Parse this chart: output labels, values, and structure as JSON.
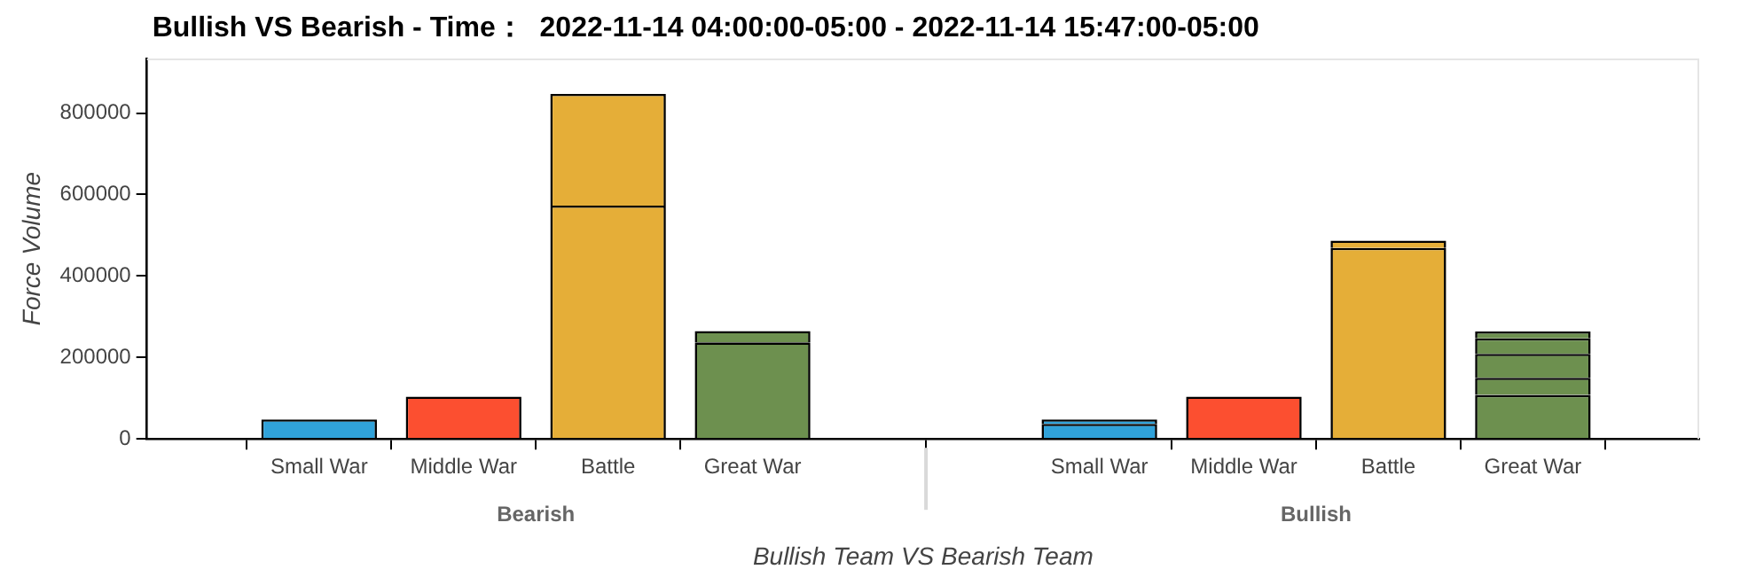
{
  "chart_data": {
    "type": "bar",
    "title": "Bullish VS Bearish - Time：  2022-11-14 04:00:00-05:00 - 2022-11-14 15:47:00-05:00",
    "xlabel": "Bullish Team VS Bearish Team",
    "ylabel": "Force Volume",
    "categories": [
      "Small War",
      "Middle War",
      "Battle",
      "Great War",
      "Small War",
      "Middle War",
      "Battle",
      "Great War"
    ],
    "annotations": [
      "Bearish",
      "Bullish"
    ],
    "stacked": true,
    "legend": false,
    "grid": false,
    "ylim": [
      0,
      934000
    ],
    "yticks": [
      0,
      200000,
      400000,
      600000,
      800000
    ],
    "series": [
      {
        "colors": [
          "#30a2da",
          "#fc4f30",
          "#e5ae38",
          "#6d904f",
          "#30a2da",
          "#fc4f30",
          "#e5ae38",
          "#6d904f"
        ],
        "values": [
          48000,
          104000,
          573000,
          237000,
          37000,
          104000,
          469000,
          108000
        ]
      },
      {
        "colors": [
          "#30a2da",
          "#fc4f30",
          "#e5ae38",
          "#6d904f",
          "#30a2da",
          "#fc4f30",
          "#e5ae38",
          "#6d904f"
        ],
        "values": [
          null,
          null,
          274000,
          28000,
          11000,
          null,
          18000,
          42000
        ]
      },
      {
        "colors": [
          "#30a2da",
          "#fc4f30",
          "#e5ae38",
          "#6d904f",
          "#30a2da",
          "#fc4f30",
          "#e5ae38",
          "#6d904f"
        ],
        "values": [
          null,
          null,
          null,
          null,
          null,
          null,
          null,
          59000
        ]
      },
      {
        "colors": [
          "#30a2da",
          "#fc4f30",
          "#e5ae38",
          "#6d904f",
          "#30a2da",
          "#fc4f30",
          "#e5ae38",
          "#6d904f"
        ],
        "values": [
          null,
          null,
          null,
          null,
          null,
          null,
          null,
          38000
        ]
      },
      {
        "colors": [
          "#30a2da",
          "#fc4f30",
          "#e5ae38",
          "#6d904f",
          "#30a2da",
          "#fc4f30",
          "#e5ae38",
          "#6d904f"
        ],
        "values": [
          null,
          null,
          null,
          null,
          null,
          null,
          null,
          17000
        ]
      }
    ]
  }
}
